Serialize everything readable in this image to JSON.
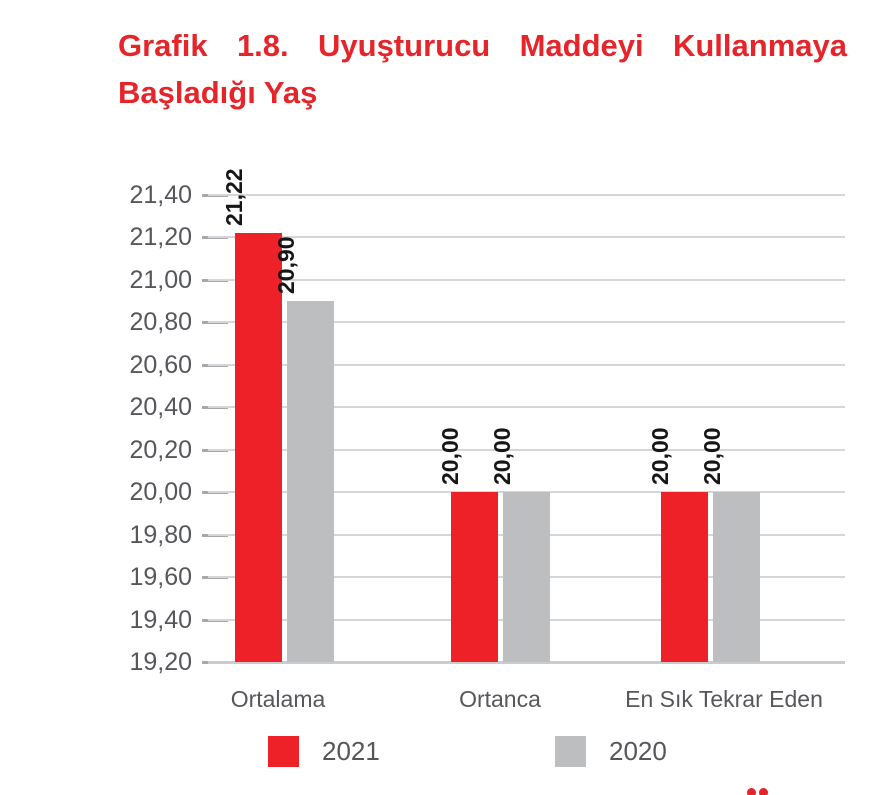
{
  "page": {
    "title_line1": "Grafik 1.8. Uyuşturucu Maddeyi Kullanmaya",
    "title_line2": "Başladığı Yaş",
    "title_color": "#e6252b"
  },
  "chart_data": {
    "type": "bar",
    "title": "Grafik 1.8. Uyuşturucu Maddeyi Kullanmaya Başladığı Yaş",
    "categories": [
      "Ortalama",
      "Ortanca",
      "En Sık Tekrar Eden"
    ],
    "series": [
      {
        "name": "2021",
        "color": "#ee2129",
        "values": [
          21.22,
          20.0,
          20.0
        ],
        "value_labels": [
          "21,22",
          "20,00",
          "20,00"
        ]
      },
      {
        "name": "2020",
        "color": "#bcbec0",
        "values": [
          20.9,
          20.0,
          20.0
        ],
        "value_labels": [
          "20,90",
          "20,00",
          "20,00"
        ]
      }
    ],
    "ylim": [
      19.2,
      21.4
    ],
    "ytick_step": 0.2,
    "ytick_labels": [
      "21,40",
      "21,20",
      "21,00",
      "20,80",
      "20,60",
      "20,40",
      "20,20",
      "20,00",
      "19,80",
      "19,60",
      "19,40",
      "19,20"
    ],
    "grid": true,
    "legend_position": "bottom",
    "value_label_rotation": -90,
    "colors": {
      "gridline": "#d4d6d7",
      "baseline": "#c9cbcd",
      "tick": "#a6a8ab",
      "axis_text": "#55575b",
      "value_label_text": "#161616",
      "legend_text": "#54565a"
    }
  },
  "cutoff_fragment": {
    "description": "top of a red letter with umlaut cut off at bottom edge",
    "color": "#e6252b"
  }
}
